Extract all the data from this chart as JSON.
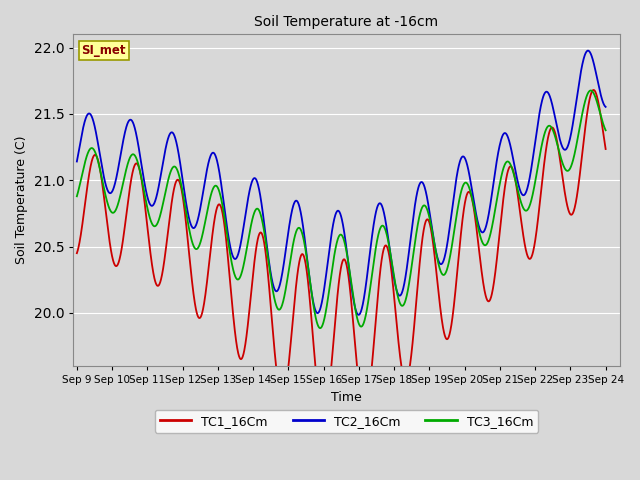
{
  "title": "Soil Temperature at -16cm",
  "xlabel": "Time",
  "ylabel": "Soil Temperature (C)",
  "ylim": [
    19.6,
    22.1
  ],
  "xlim": [
    -0.1,
    15.4
  ],
  "x_tick_labels": [
    "Sep 9",
    "Sep 10",
    "Sep 11",
    "Sep 12",
    "Sep 13",
    "Sep 14",
    "Sep 15",
    "Sep 16",
    "Sep 17",
    "Sep 18",
    "Sep 19",
    "Sep 20",
    "Sep 21",
    "Sep 22",
    "Sep 23",
    "Sep 24"
  ],
  "x_tick_positions": [
    0,
    1,
    2,
    3,
    4,
    5,
    6,
    7,
    8,
    9,
    10,
    11,
    12,
    13,
    14,
    15
  ],
  "bg_color": "#d8d8d8",
  "plot_bg_color": "#d8d8d8",
  "grid_color": "#ffffff",
  "tc1_color": "#cc0000",
  "tc2_color": "#0000cc",
  "tc3_color": "#00aa00",
  "legend_label": "SI_met",
  "legend_bg": "#ffff99",
  "legend_border": "#999900",
  "series_names": [
    "TC1_16Cm",
    "TC2_16Cm",
    "TC3_16Cm"
  ]
}
